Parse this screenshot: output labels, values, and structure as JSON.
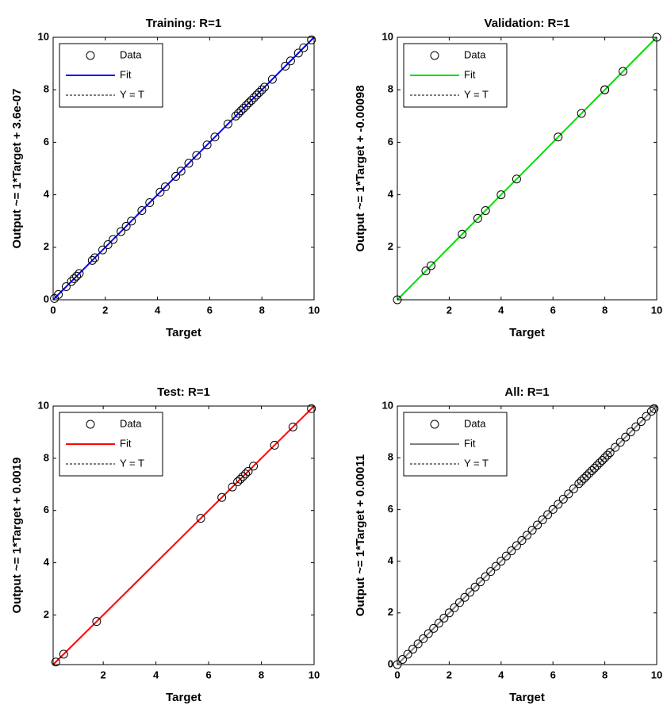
{
  "chart_data": [
    {
      "type": "scatter",
      "title": "Training: R=1",
      "xlabel": "Target",
      "ylabel": "Output ~= 1*Target + 3.6e-07",
      "xlim": [
        0,
        10
      ],
      "ylim": [
        0,
        10
      ],
      "xticks": [
        0,
        2,
        4,
        6,
        8,
        10
      ],
      "yticks": [
        0,
        2,
        4,
        6,
        8,
        10
      ],
      "series": [
        {
          "name": "Data",
          "color": "#000000",
          "mode": "markers",
          "x": [
            0.05,
            0.2,
            0.5,
            0.7,
            0.8,
            0.9,
            1.0,
            1.5,
            1.6,
            1.9,
            2.1,
            2.3,
            2.6,
            2.8,
            3.0,
            3.4,
            3.7,
            4.1,
            4.3,
            4.7,
            4.9,
            5.2,
            5.5,
            5.9,
            6.2,
            6.7,
            7.0,
            7.1,
            7.2,
            7.3,
            7.4,
            7.5,
            7.6,
            7.7,
            7.8,
            7.9,
            8.0,
            8.1,
            8.4,
            8.9,
            9.1,
            9.4,
            9.6,
            9.9
          ],
          "values": [
            0.05,
            0.2,
            0.5,
            0.7,
            0.8,
            0.9,
            1.0,
            1.5,
            1.6,
            1.9,
            2.1,
            2.3,
            2.6,
            2.8,
            3.0,
            3.4,
            3.7,
            4.1,
            4.3,
            4.7,
            4.9,
            5.2,
            5.5,
            5.9,
            6.2,
            6.7,
            7.0,
            7.1,
            7.2,
            7.3,
            7.4,
            7.5,
            7.6,
            7.7,
            7.8,
            7.9,
            8.0,
            8.1,
            8.4,
            8.9,
            9.1,
            9.4,
            9.6,
            9.9
          ]
        },
        {
          "name": "Fit",
          "color": "#0000ff",
          "mode": "line",
          "x": [
            0,
            10
          ],
          "values": [
            0,
            10
          ]
        },
        {
          "name": "Y = T",
          "color": "#000000",
          "mode": "line",
          "dash": true,
          "x": [
            0,
            10
          ],
          "values": [
            0,
            10
          ]
        }
      ]
    },
    {
      "type": "scatter",
      "title": "Validation: R=1",
      "xlabel": "Target",
      "ylabel": "Output ~= 1*Target + -0.00098",
      "xlim": [
        0,
        10
      ],
      "ylim": [
        0,
        10
      ],
      "xticks": [
        2,
        4,
        6,
        8,
        10
      ],
      "yticks": [
        2,
        4,
        6,
        8,
        10
      ],
      "series": [
        {
          "name": "Data",
          "color": "#000000",
          "mode": "markers",
          "x": [
            0,
            1.1,
            1.3,
            2.5,
            3.1,
            3.4,
            4.0,
            4.6,
            6.2,
            7.1,
            8.0,
            8.0,
            8.7,
            10
          ],
          "values": [
            0,
            1.1,
            1.3,
            2.5,
            3.1,
            3.4,
            4.0,
            4.6,
            6.2,
            7.1,
            8.0,
            8.0,
            8.7,
            10
          ]
        },
        {
          "name": "Fit",
          "color": "#00dd00",
          "mode": "line",
          "x": [
            0,
            10
          ],
          "values": [
            0,
            10
          ]
        },
        {
          "name": "Y = T",
          "color": "#000000",
          "mode": "line",
          "dash": true,
          "x": [
            0,
            10
          ],
          "values": [
            0,
            10
          ]
        }
      ]
    },
    {
      "type": "scatter",
      "title": "Test: R=1",
      "xlabel": "Target",
      "ylabel": "Output ~= 1*Target + 0.0019",
      "xlim": [
        0.1,
        10
      ],
      "ylim": [
        0.1,
        10
      ],
      "xticks": [
        2,
        4,
        6,
        8,
        10
      ],
      "yticks": [
        2,
        4,
        6,
        8,
        10
      ],
      "series": [
        {
          "name": "Data",
          "color": "#000000",
          "mode": "markers",
          "x": [
            0.2,
            0.5,
            1.75,
            5.7,
            6.5,
            6.9,
            7.1,
            7.2,
            7.3,
            7.4,
            7.5,
            7.7,
            8.5,
            9.2,
            9.9
          ],
          "values": [
            0.2,
            0.5,
            1.75,
            5.7,
            6.5,
            6.9,
            7.1,
            7.2,
            7.3,
            7.4,
            7.5,
            7.7,
            8.5,
            9.2,
            9.9
          ]
        },
        {
          "name": "Fit",
          "color": "#ff0000",
          "mode": "line",
          "x": [
            0.1,
            10
          ],
          "values": [
            0.1,
            10
          ]
        },
        {
          "name": "Y = T",
          "color": "#000000",
          "mode": "line",
          "dash": true,
          "x": [
            0.1,
            10
          ],
          "values": [
            0.1,
            10
          ]
        }
      ]
    },
    {
      "type": "scatter",
      "title": "All: R=1",
      "xlabel": "Target",
      "ylabel": "Output ~= 1*Target + 0.00011",
      "xlim": [
        0,
        10
      ],
      "ylim": [
        0,
        10
      ],
      "xticks": [
        0,
        2,
        4,
        6,
        8,
        10
      ],
      "yticks": [
        0,
        2,
        4,
        6,
        8,
        10
      ],
      "series": [
        {
          "name": "Data",
          "color": "#000000",
          "mode": "markers",
          "x": [
            0,
            0.2,
            0.4,
            0.6,
            0.8,
            1.0,
            1.2,
            1.4,
            1.6,
            1.8,
            2.0,
            2.2,
            2.4,
            2.6,
            2.8,
            3.0,
            3.2,
            3.4,
            3.6,
            3.8,
            4.0,
            4.2,
            4.4,
            4.6,
            4.8,
            5.0,
            5.2,
            5.4,
            5.6,
            5.8,
            6.0,
            6.2,
            6.4,
            6.6,
            6.8,
            7.0,
            7.1,
            7.2,
            7.3,
            7.4,
            7.5,
            7.6,
            7.7,
            7.8,
            7.9,
            8.0,
            8.1,
            8.2,
            8.4,
            8.6,
            8.8,
            9.0,
            9.2,
            9.4,
            9.6,
            9.8,
            9.9
          ],
          "values": [
            0,
            0.2,
            0.4,
            0.6,
            0.8,
            1.0,
            1.2,
            1.4,
            1.6,
            1.8,
            2.0,
            2.2,
            2.4,
            2.6,
            2.8,
            3.0,
            3.2,
            3.4,
            3.6,
            3.8,
            4.0,
            4.2,
            4.4,
            4.6,
            4.8,
            5.0,
            5.2,
            5.4,
            5.6,
            5.8,
            6.0,
            6.2,
            6.4,
            6.6,
            6.8,
            7.0,
            7.1,
            7.2,
            7.3,
            7.4,
            7.5,
            7.6,
            7.7,
            7.8,
            7.9,
            8.0,
            8.1,
            8.2,
            8.4,
            8.6,
            8.8,
            9.0,
            9.2,
            9.4,
            9.6,
            9.8,
            9.9
          ]
        },
        {
          "name": "Fit",
          "color": "#808080",
          "mode": "line",
          "x": [
            0,
            10
          ],
          "values": [
            0,
            10
          ]
        },
        {
          "name": "Y = T",
          "color": "#000000",
          "mode": "line",
          "dash": true,
          "x": [
            0,
            10
          ],
          "values": [
            0,
            10
          ]
        }
      ]
    }
  ]
}
